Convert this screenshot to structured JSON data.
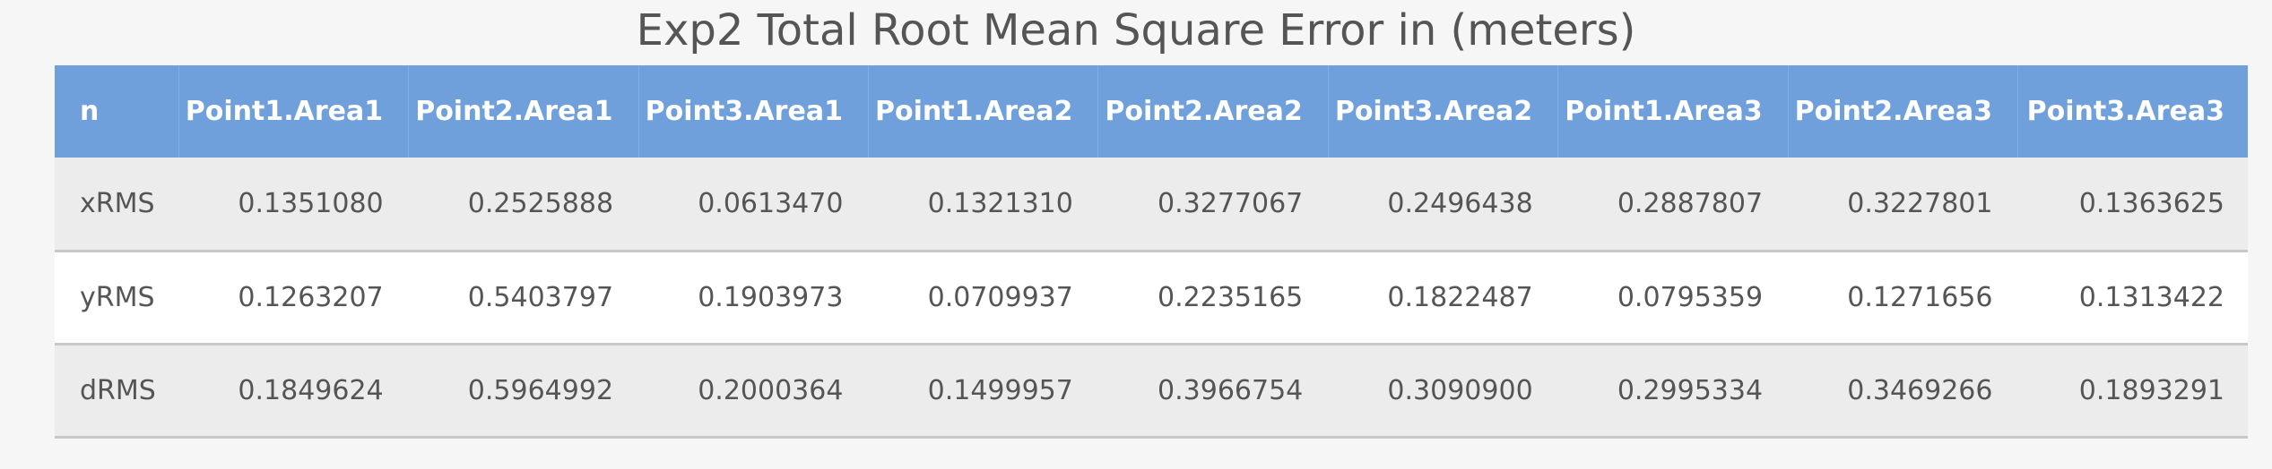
{
  "title": "Exp2 Total Root Mean Square Error in (meters)",
  "table": {
    "headers": [
      "n",
      "Point1.Area1",
      "Point2.Area1",
      "Point3.Area1",
      "Point1.Area2",
      "Point2.Area2",
      "Point3.Area2",
      "Point1.Area3",
      "Point2.Area3",
      "Point3.Area3"
    ],
    "rows": [
      [
        "xRMS",
        "0.1351080",
        "0.2525888",
        "0.0613470",
        "0.1321310",
        "0.3277067",
        "0.2496438",
        "0.2887807",
        "0.3227801",
        "0.1363625"
      ],
      [
        "yRMS",
        "0.1263207",
        "0.5403797",
        "0.1903973",
        "0.0709937",
        "0.2235165",
        "0.1822487",
        "0.0795359",
        "0.1271656",
        "0.1313422"
      ],
      [
        "dRMS",
        "0.1849624",
        "0.5964992",
        "0.2000364",
        "0.1499957",
        "0.3966754",
        "0.3090900",
        "0.2995334",
        "0.3469266",
        "0.1893291"
      ]
    ]
  },
  "colors": {
    "header_bg": "#6fa0dc",
    "header_text": "#ffffff",
    "row_odd_bg": "#ececec",
    "row_even_bg": "#ffffff",
    "body_text": "#555555"
  }
}
